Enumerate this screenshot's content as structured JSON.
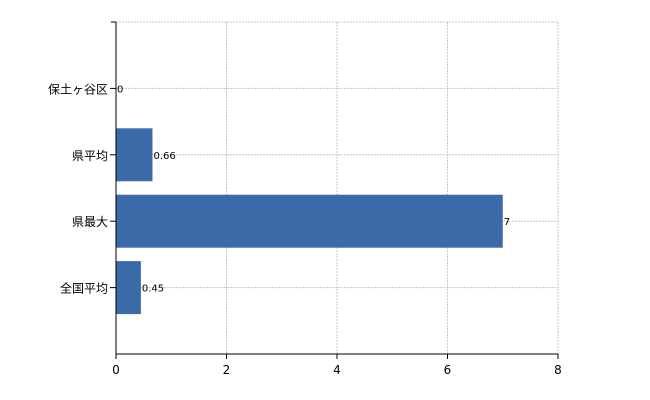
{
  "chart_data": {
    "type": "bar",
    "orientation": "horizontal",
    "categories": [
      "保土ヶ谷区",
      "県平均",
      "県最大",
      "全国平均"
    ],
    "values": [
      0,
      0.66,
      7,
      0.45
    ],
    "data_labels": [
      "0",
      "0.66",
      "7",
      "0.45"
    ],
    "xlim": [
      0,
      8
    ],
    "x_ticks": [
      "0",
      "2",
      "4",
      "6",
      "8"
    ],
    "grid": true,
    "bar_color": "#3a6aa8"
  }
}
